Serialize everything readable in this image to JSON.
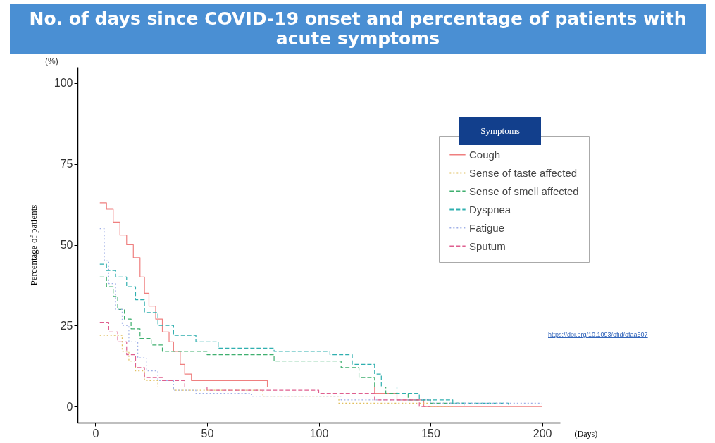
{
  "chart_data": {
    "type": "step",
    "title": "No. of days since COVID-19 onset and percentage of patients with acute symptoms",
    "xlabel": "(Days)",
    "ylabel": "Percentage of patients",
    "legend_title": "Symptoms",
    "annotations": [
      "(%)",
      "https://doi.org/10.1093/ofid/ofaa507"
    ],
    "xlim": [
      -8,
      208
    ],
    "ylim": [
      -5,
      105
    ],
    "xticks": [
      0,
      50,
      100,
      150,
      200
    ],
    "yticks": [
      0,
      25,
      50,
      75,
      100
    ],
    "grid": false,
    "legend": "right",
    "marker": "none",
    "series": [
      {
        "name": "Cough",
        "color": "#ef7f7f",
        "line_style": "solid",
        "x": [
          2,
          5,
          8,
          11,
          14,
          17,
          20,
          22,
          24,
          27,
          30,
          33,
          35,
          38,
          40,
          43,
          77,
          125,
          135,
          147,
          200
        ],
        "values": [
          63,
          61,
          57,
          53,
          50,
          46,
          40,
          35,
          31,
          27,
          23,
          20,
          17,
          13,
          10,
          8,
          6,
          4,
          2,
          0,
          0
        ]
      },
      {
        "name": "Sense of taste affected",
        "color": "#e0bf5f",
        "line_style": "dotted",
        "x": [
          2,
          12,
          15,
          18,
          22,
          28,
          35,
          75,
          109,
          150,
          160
        ],
        "values": [
          22,
          17,
          14,
          11,
          8,
          6,
          5,
          3,
          1,
          0,
          0
        ]
      },
      {
        "name": "Sense of smell affected",
        "color": "#3faf6f",
        "line_style": "dashed",
        "x": [
          2,
          5,
          8,
          10,
          13,
          16,
          20,
          25,
          30,
          50,
          80,
          110,
          118,
          125,
          130,
          140,
          150,
          165
        ],
        "values": [
          40,
          37,
          34,
          30,
          27,
          24,
          21,
          19,
          17,
          16,
          14,
          12,
          9,
          6,
          4,
          2,
          1,
          0
        ]
      },
      {
        "name": "Dyspnea",
        "color": "#2fafaf",
        "line_style": "dashed",
        "x": [
          2,
          5,
          9,
          14,
          18,
          22,
          28,
          35,
          45,
          55,
          80,
          105,
          115,
          125,
          128,
          135,
          145,
          160,
          185
        ],
        "values": [
          44,
          42,
          40,
          37,
          33,
          29,
          25,
          22,
          20,
          18,
          17,
          16,
          13,
          10,
          6,
          4,
          2,
          1,
          0
        ]
      },
      {
        "name": "Fatigue",
        "color": "#9fafe7",
        "line_style": "dotted",
        "x": [
          2,
          4,
          6,
          9,
          12,
          15,
          19,
          23,
          28,
          35,
          45,
          70,
          110,
          150,
          200
        ],
        "values": [
          55,
          45,
          38,
          30,
          25,
          20,
          15,
          11,
          8,
          5,
          4,
          3,
          2,
          1,
          1
        ]
      },
      {
        "name": "Sputum",
        "color": "#df5f8f",
        "line_style": "dashed",
        "x": [
          2,
          6,
          10,
          14,
          18,
          22,
          30,
          40,
          50,
          100,
          125,
          145,
          150
        ],
        "values": [
          26,
          23,
          20,
          16,
          12,
          9,
          8,
          6,
          5,
          4,
          2,
          0,
          0
        ]
      }
    ]
  }
}
